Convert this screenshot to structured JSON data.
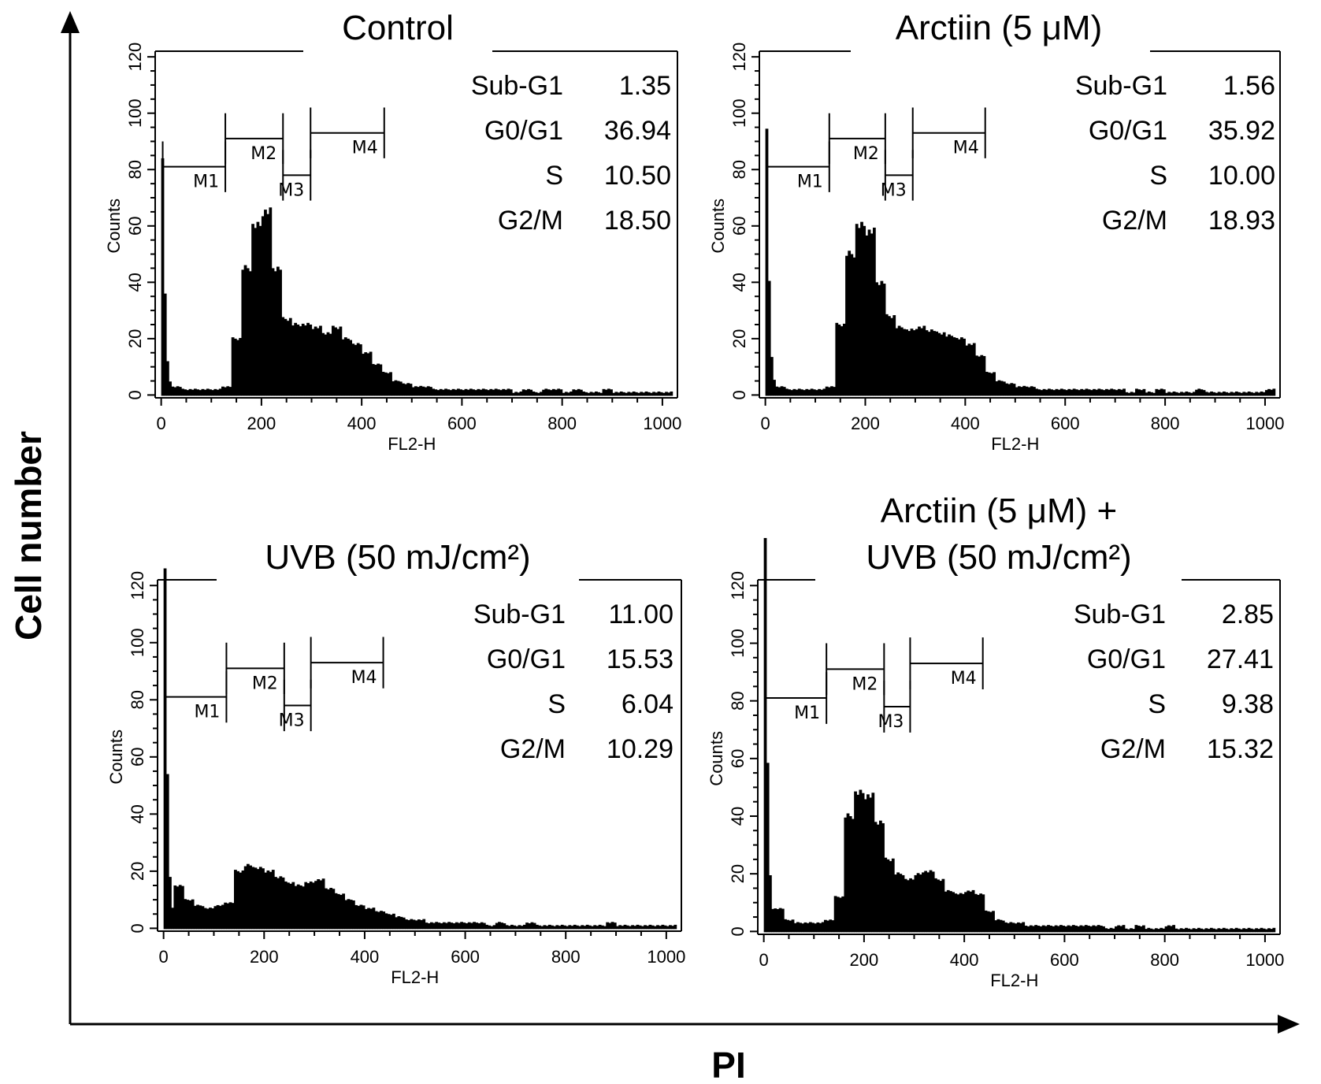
{
  "chart_data": {
    "type": "bar",
    "ylabel_main": "Cell number",
    "xlabel_main": "PI",
    "bin_width": 20,
    "bin_start": 0,
    "panels": [
      {
        "title": [
          "Control"
        ],
        "xlabel": "FL2-H",
        "ylabel": "Counts",
        "xlim": [
          0,
          1000
        ],
        "ylim": [
          0,
          120
        ],
        "xticks": [
          "0",
          "200",
          "400",
          "600",
          "800",
          "1000"
        ],
        "yticks": [
          "0",
          "20",
          "40",
          "60",
          "80",
          "100",
          "120"
        ],
        "stats": [
          {
            "label": "Sub-G1",
            "value": "1.35"
          },
          {
            "label": "G0/G1",
            "value": "36.94"
          },
          {
            "label": "S",
            "value": "10.50"
          },
          {
            "label": "G2/M",
            "value": "18.50"
          }
        ],
        "markers": [
          {
            "name": "M1",
            "from": 3,
            "to": 128,
            "level": 81
          },
          {
            "name": "M2",
            "from": 128,
            "to": 243,
            "level": 91
          },
          {
            "name": "M3",
            "from": 243,
            "to": 298,
            "level": 78
          },
          {
            "name": "M4",
            "from": 298,
            "to": 445,
            "level": 93
          }
        ],
        "counts": [
          40,
          3,
          2,
          2,
          2,
          2,
          3,
          20,
          45,
          60,
          65,
          45,
          27,
          25,
          25,
          24,
          22,
          24,
          20,
          18,
          15,
          11,
          8,
          5,
          4,
          3,
          3,
          2,
          2,
          2,
          2,
          2,
          2,
          2,
          2,
          1,
          2,
          1,
          2,
          2,
          1,
          2,
          1,
          1,
          2,
          1,
          1,
          1,
          1,
          1,
          1
        ]
      },
      {
        "title": [
          "Arctiin (5 μM)"
        ],
        "xlabel": "FL2-H",
        "ylabel": "Counts",
        "xlim": [
          0,
          1000
        ],
        "ylim": [
          0,
          120
        ],
        "xticks": [
          "0",
          "200",
          "400",
          "600",
          "800",
          "1000"
        ],
        "yticks": [
          "0",
          "20",
          "40",
          "60",
          "80",
          "100",
          "120"
        ],
        "stats": [
          {
            "label": "Sub-G1",
            "value": "1.56"
          },
          {
            "label": "G0/G1",
            "value": "35.92"
          },
          {
            "label": "S",
            "value": "10.00"
          },
          {
            "label": "G2/M",
            "value": "18.93"
          }
        ],
        "markers": [
          {
            "name": "M1",
            "from": 3,
            "to": 128,
            "level": 81
          },
          {
            "name": "M2",
            "from": 128,
            "to": 240,
            "level": 91
          },
          {
            "name": "M3",
            "from": 240,
            "to": 295,
            "level": 78
          },
          {
            "name": "M4",
            "from": 295,
            "to": 440,
            "level": 93
          }
        ],
        "counts": [
          45,
          3,
          2,
          2,
          2,
          2,
          3,
          25,
          50,
          60,
          58,
          40,
          28,
          24,
          23,
          24,
          23,
          22,
          21,
          20,
          18,
          14,
          8,
          5,
          4,
          3,
          3,
          2,
          2,
          2,
          2,
          2,
          2,
          2,
          2,
          2,
          1,
          2,
          1,
          2,
          1,
          1,
          1,
          2,
          1,
          1,
          1,
          1,
          1,
          1,
          2
        ]
      },
      {
        "title": [
          "UVB (50 mJ/cm²)"
        ],
        "xlabel": "FL2-H",
        "ylabel": "Counts",
        "xlim": [
          0,
          1000
        ],
        "ylim": [
          0,
          120
        ],
        "xticks": [
          "0",
          "200",
          "400",
          "600",
          "800",
          "1000"
        ],
        "yticks": [
          "0",
          "20",
          "40",
          "60",
          "80",
          "100",
          "120"
        ],
        "stats": [
          {
            "label": "Sub-G1",
            "value": "11.00"
          },
          {
            "label": "G0/G1",
            "value": "15.53"
          },
          {
            "label": "S",
            "value": "6.04"
          },
          {
            "label": "G2/M",
            "value": "10.29"
          }
        ],
        "markers": [
          {
            "name": "M1",
            "from": 3,
            "to": 125,
            "level": 81
          },
          {
            "name": "M2",
            "from": 125,
            "to": 240,
            "level": 91
          },
          {
            "name": "M3",
            "from": 240,
            "to": 293,
            "level": 78
          },
          {
            "name": "M4",
            "from": 293,
            "to": 437,
            "level": 93
          }
        ],
        "counts": [
          60,
          15,
          10,
          8,
          7,
          8,
          9,
          20,
          22,
          21,
          20,
          18,
          16,
          15,
          16,
          17,
          14,
          12,
          10,
          8,
          7,
          6,
          5,
          4,
          3,
          3,
          2,
          2,
          2,
          2,
          2,
          2,
          1,
          2,
          1,
          1,
          2,
          1,
          1,
          1,
          1,
          1,
          1,
          1,
          2,
          1,
          1,
          1,
          1,
          1,
          1
        ]
      },
      {
        "title": [
          "Arctiin (5 μM) +",
          "UVB (50 mJ/cm²)"
        ],
        "xlabel": "FL2-H",
        "ylabel": "Counts",
        "xlim": [
          0,
          1000
        ],
        "ylim": [
          0,
          120
        ],
        "xticks": [
          "0",
          "200",
          "400",
          "600",
          "800",
          "1000"
        ],
        "yticks": [
          "0",
          "20",
          "40",
          "60",
          "80",
          "100",
          "120"
        ],
        "stats": [
          {
            "label": "Sub-G1",
            "value": "2.85"
          },
          {
            "label": "G0/G1",
            "value": "27.41"
          },
          {
            "label": "S",
            "value": "9.38"
          },
          {
            "label": "G2/M",
            "value": "15.32"
          }
        ],
        "markers": [
          {
            "name": "M1",
            "from": 3,
            "to": 125,
            "level": 81
          },
          {
            "name": "M2",
            "from": 125,
            "to": 240,
            "level": 91
          },
          {
            "name": "M3",
            "from": 240,
            "to": 292,
            "level": 78
          },
          {
            "name": "M4",
            "from": 292,
            "to": 437,
            "level": 93
          }
        ],
        "counts": [
          65,
          8,
          4,
          3,
          3,
          3,
          4,
          12,
          40,
          48,
          47,
          38,
          25,
          20,
          18,
          20,
          21,
          18,
          14,
          13,
          14,
          13,
          7,
          4,
          3,
          3,
          2,
          2,
          2,
          2,
          2,
          2,
          2,
          2,
          1,
          2,
          1,
          2,
          1,
          1,
          2,
          1,
          1,
          1,
          1,
          1,
          1,
          1,
          1,
          1,
          1
        ]
      }
    ]
  }
}
